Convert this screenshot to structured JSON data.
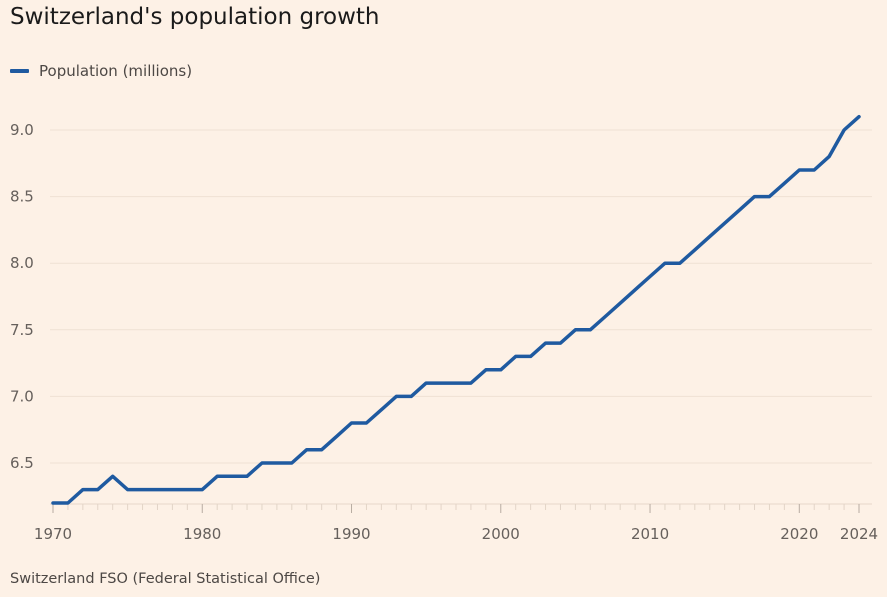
{
  "title": "Switzerland's population growth",
  "source": "Switzerland FSO (Federal Statistical Office)",
  "colors": {
    "background": "#fdf1e6",
    "line": "#1f5aa0",
    "grid": "#efe1d4",
    "text": "#66605c"
  },
  "chart_data": {
    "type": "line",
    "title": "Switzerland's population growth",
    "xlabel": "",
    "ylabel": "",
    "xlim": [
      1970,
      2024
    ],
    "ylim": [
      6.2,
      9.1
    ],
    "grid": true,
    "legend_position": "top-left",
    "x_ticks": [
      1970,
      1980,
      1990,
      2000,
      2010,
      2020,
      2024
    ],
    "x_tick_labels": [
      "1970",
      "1980",
      "1990",
      "2000",
      "2010",
      "2020",
      "2024"
    ],
    "y_ticks": [
      6.5,
      7.0,
      7.5,
      8.0,
      8.5,
      9.0
    ],
    "y_tick_labels": [
      "6.5",
      "7.0",
      "7.5",
      "8.0",
      "8.5",
      "9.0"
    ],
    "series": [
      {
        "name": "Population (millions)",
        "x": [
          1970,
          1971,
          1972,
          1973,
          1974,
          1975,
          1976,
          1977,
          1978,
          1979,
          1980,
          1981,
          1982,
          1983,
          1984,
          1985,
          1986,
          1987,
          1988,
          1989,
          1990,
          1991,
          1992,
          1993,
          1994,
          1995,
          1996,
          1997,
          1998,
          1999,
          2000,
          2001,
          2002,
          2003,
          2004,
          2005,
          2006,
          2007,
          2008,
          2009,
          2010,
          2011,
          2012,
          2013,
          2014,
          2015,
          2016,
          2017,
          2018,
          2019,
          2020,
          2021,
          2022,
          2023,
          2024
        ],
        "values": [
          6.2,
          6.2,
          6.3,
          6.3,
          6.4,
          6.3,
          6.3,
          6.3,
          6.3,
          6.3,
          6.3,
          6.4,
          6.4,
          6.4,
          6.5,
          6.5,
          6.5,
          6.6,
          6.6,
          6.7,
          6.8,
          6.8,
          6.9,
          7.0,
          7.0,
          7.1,
          7.1,
          7.1,
          7.1,
          7.2,
          7.2,
          7.3,
          7.3,
          7.4,
          7.4,
          7.5,
          7.5,
          7.6,
          7.7,
          7.8,
          7.9,
          8.0,
          8.0,
          8.1,
          8.2,
          8.3,
          8.4,
          8.5,
          8.5,
          8.6,
          8.7,
          8.7,
          8.8,
          9.0,
          9.1
        ]
      }
    ]
  }
}
